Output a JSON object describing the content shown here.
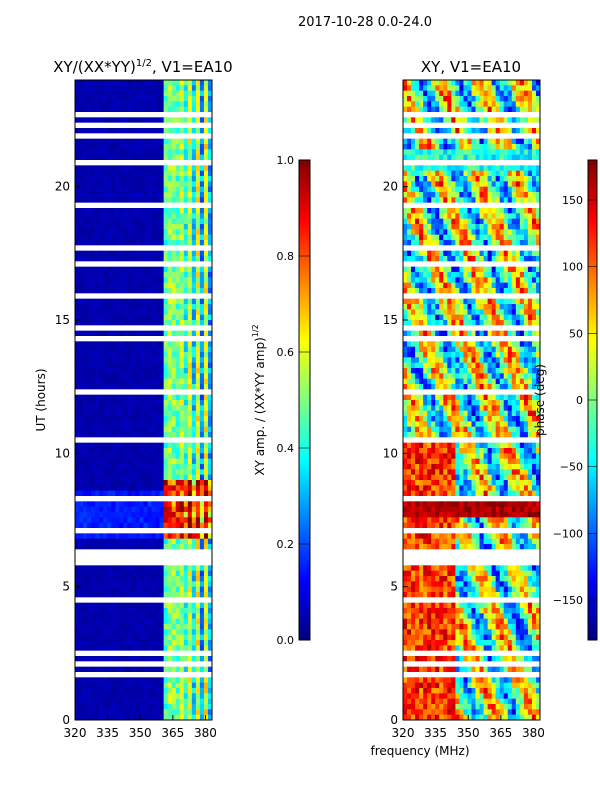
{
  "suptitle": "2017-10-28 0.0-24.0",
  "colors": {
    "jet": [
      "#00007f",
      "#0000ff",
      "#007fff",
      "#00ffff",
      "#7fff7f",
      "#ffff00",
      "#ff7f00",
      "#ff0000",
      "#7f0000"
    ],
    "gap": "#ffffff",
    "axis": "#000000"
  },
  "chart_data": [
    {
      "type": "heatmap",
      "panel": "left",
      "title_main": "XY/(XX*YY)",
      "title_exp": "1/2",
      "title_suffix": ", V1=EA10",
      "xlabel": "",
      "ylabel": "UT (hours)",
      "xlim": [
        320,
        383
      ],
      "ylim": [
        0,
        24
      ],
      "xticks": [
        320,
        335,
        350,
        365,
        380
      ],
      "yticks": [
        0,
        5,
        10,
        15,
        20
      ],
      "colorbar": {
        "label_main": "XY amp. / (XX*YY amp)",
        "label_exp": "1/2",
        "vmin": 0.0,
        "vmax": 1.0,
        "ticks": [
          "0.0",
          "0.2",
          "0.4",
          "0.6",
          "0.8",
          "1.0"
        ]
      },
      "description": "Normalized XY amplitude; near 0 below 360 MHz, 0.2-0.7 in bands between 360 and 383 MHz, higher near 7-9 UT"
    },
    {
      "type": "heatmap",
      "panel": "right",
      "title": "XY, V1=EA10",
      "xlabel": "frequency (MHz)",
      "ylabel": "",
      "xlim": [
        320,
        383
      ],
      "ylim": [
        0,
        24
      ],
      "xticks": [
        320,
        335,
        350,
        365,
        380
      ],
      "yticks": [
        0,
        5,
        10,
        15,
        20
      ],
      "colorbar": {
        "label": "phase (deg)",
        "vmin": -180,
        "vmax": 180,
        "ticks": [
          "−150",
          "−100",
          "−50",
          "0",
          "50",
          "100",
          "150"
        ]
      },
      "description": "XY phase in degrees versus frequency and UT, spanning -180 to 180"
    }
  ]
}
